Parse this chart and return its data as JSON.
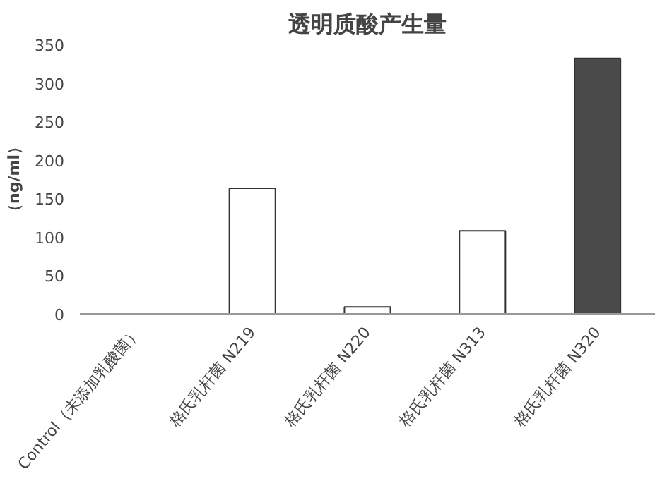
{
  "chart_data": {
    "type": "bar",
    "title": "透明质酸产生量",
    "ylabel": "（ng/ml）",
    "categories": [
      "Control（未添加乳酸菌）",
      "格氏乳杆菌 N219",
      "格氏乳杆菌 N220",
      "格氏乳杆菌 N313",
      "格氏乳杆菌 N320"
    ],
    "values": [
      0,
      163,
      9,
      108,
      332
    ],
    "colors": [
      "#333333",
      "#ffffff",
      "#ffffff",
      "#ffffff",
      "#4a4a4a"
    ],
    "ylim": [
      0,
      350
    ],
    "yticks": [
      0,
      50,
      100,
      150,
      200,
      250,
      300,
      350
    ],
    "grid": false
  }
}
